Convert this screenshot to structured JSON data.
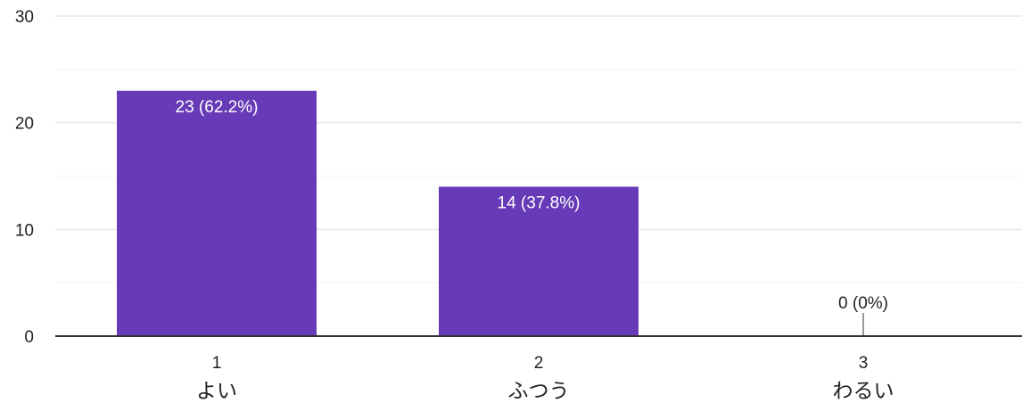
{
  "chart_data": {
    "type": "bar",
    "categories": [
      "1",
      "2",
      "3"
    ],
    "category_labels": [
      "よい",
      "ふつう",
      "わるい"
    ],
    "values": [
      23,
      14,
      0
    ],
    "data_labels": [
      "23 (62.2%)",
      "14 (37.8%)",
      "0 (0%)"
    ],
    "ylim": [
      0,
      30
    ],
    "yticks": [
      "0",
      "10",
      "20",
      "30"
    ],
    "grid": true,
    "legend": "none",
    "colors": {
      "bar": "#673ab7",
      "label_inside": "#ffffff",
      "label_outside": "#222222",
      "gridline": "#ebebeb",
      "baseline": "#333333"
    }
  }
}
